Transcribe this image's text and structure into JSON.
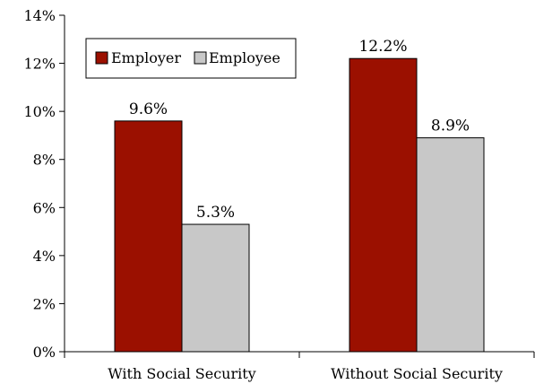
{
  "chart_data": {
    "type": "bar",
    "title": "",
    "xlabel": "",
    "ylabel": "",
    "categories": [
      "With Social Security",
      "Without Social Security"
    ],
    "series": [
      {
        "name": "Employer",
        "values": [
          9.6,
          12.2
        ],
        "labels": [
          "9.6%",
          "12.2%"
        ],
        "color": "#9b1000"
      },
      {
        "name": "Employee",
        "values": [
          5.3,
          8.9
        ],
        "labels": [
          "5.3%",
          "8.9%"
        ],
        "color": "#c8c8c8"
      }
    ],
    "ylim": [
      0,
      14
    ],
    "yticks": [
      0,
      2,
      4,
      6,
      8,
      10,
      12,
      14
    ],
    "ytick_labels": [
      "0%",
      "2%",
      "4%",
      "6%",
      "8%",
      "10%",
      "12%",
      "14%"
    ],
    "grid": false,
    "legend": {
      "position": "top-left",
      "entries": [
        "Employer",
        "Employee"
      ]
    }
  }
}
